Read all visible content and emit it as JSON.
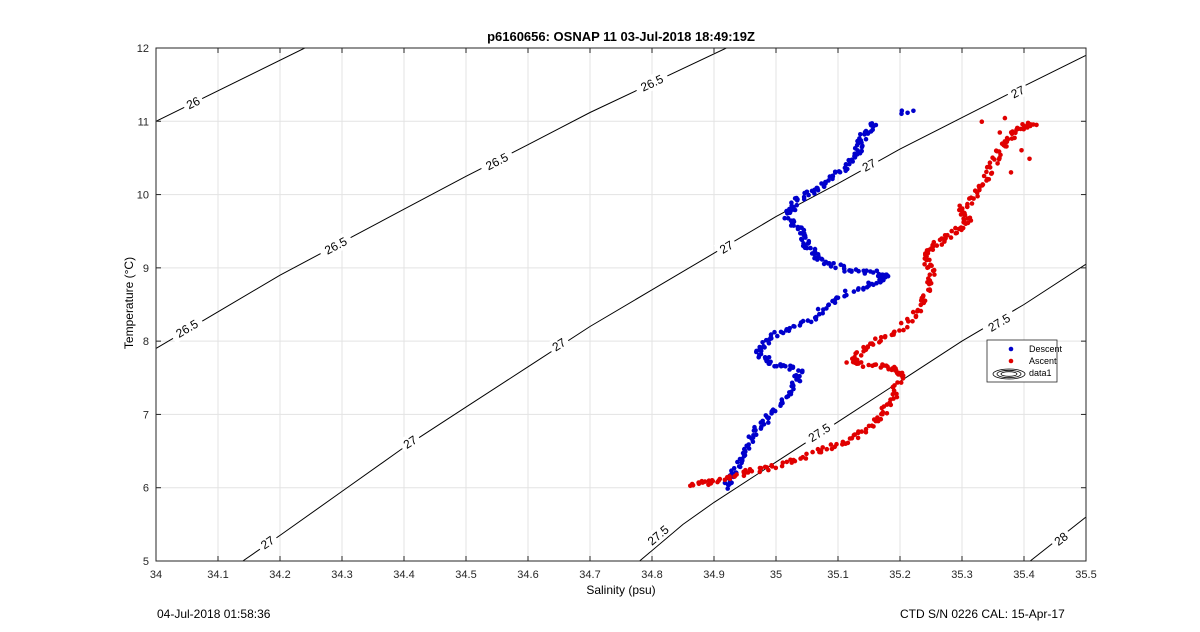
{
  "footer": {
    "left": "04-Jul-2018 01:58:36",
    "right": "CTD S/N 0226  CAL: 15-Apr-17"
  },
  "chart_data": {
    "type": "scatter",
    "title": "p6160656: OSNAP 11 03-Jul-2018 18:49:19Z",
    "xlabel": "Salinity (psu)",
    "ylabel": "Temperature (°C)",
    "xlim": [
      34,
      35.5
    ],
    "ylim": [
      5,
      12
    ],
    "xticks": [
      "34",
      "34.1",
      "34.2",
      "34.3",
      "34.4",
      "34.5",
      "34.6",
      "34.7",
      "34.8",
      "34.9",
      "35",
      "35.1",
      "35.2",
      "35.3",
      "35.4",
      "35.5"
    ],
    "yticks": [
      "5",
      "6",
      "7",
      "8",
      "9",
      "10",
      "11",
      "12"
    ],
    "grid": true,
    "legend": {
      "position": "right",
      "entries": [
        "Descent",
        "Ascent",
        "data1"
      ]
    },
    "colors": {
      "descent": "#0000cc",
      "ascent": "#e00000",
      "contour": "#000000"
    },
    "contours": [
      {
        "level": "26",
        "points": [
          [
            34.0,
            11.0
          ],
          [
            34.24,
            12.0
          ]
        ],
        "label_at": [
          34.06,
          11.25
        ]
      },
      {
        "level": "26.5",
        "points": [
          [
            34.0,
            7.9
          ],
          [
            34.1,
            8.4
          ],
          [
            34.2,
            8.9
          ],
          [
            34.3,
            9.35
          ],
          [
            34.4,
            9.8
          ],
          [
            34.5,
            10.25
          ],
          [
            34.6,
            10.68
          ],
          [
            34.7,
            11.12
          ],
          [
            34.8,
            11.52
          ],
          [
            34.92,
            12.0
          ]
        ],
        "label_at": [
          [
            34.05,
            8.17
          ],
          [
            34.29,
            9.3
          ],
          [
            34.55,
            10.45
          ],
          [
            34.8,
            11.52
          ]
        ]
      },
      {
        "level": "27",
        "points": [
          [
            34.14,
            5.0
          ],
          [
            34.2,
            5.35
          ],
          [
            34.3,
            5.95
          ],
          [
            34.4,
            6.55
          ],
          [
            34.5,
            7.1
          ],
          [
            34.6,
            7.65
          ],
          [
            34.7,
            8.2
          ],
          [
            34.8,
            8.7
          ],
          [
            34.9,
            9.2
          ],
          [
            35.0,
            9.7
          ],
          [
            35.1,
            10.15
          ],
          [
            35.2,
            10.62
          ],
          [
            35.3,
            11.05
          ],
          [
            35.4,
            11.48
          ],
          [
            35.5,
            11.9
          ]
        ],
        "label_at": [
          [
            34.18,
            5.25
          ],
          [
            34.41,
            6.62
          ],
          [
            34.65,
            7.95
          ],
          [
            34.92,
            9.28
          ],
          [
            35.15,
            10.4
          ],
          [
            35.39,
            11.4
          ]
        ]
      },
      {
        "level": "27.5",
        "points": [
          [
            34.78,
            5.0
          ],
          [
            34.85,
            5.5
          ],
          [
            34.9,
            5.8
          ],
          [
            35.0,
            6.35
          ],
          [
            35.1,
            6.9
          ],
          [
            35.2,
            7.45
          ],
          [
            35.3,
            8.0
          ],
          [
            35.4,
            8.5
          ],
          [
            35.5,
            9.05
          ]
        ],
        "label_at": [
          [
            34.81,
            5.35
          ],
          [
            35.07,
            6.75
          ],
          [
            35.36,
            8.25
          ]
        ]
      },
      {
        "level": "28",
        "points": [
          [
            35.41,
            5.0
          ],
          [
            35.5,
            5.6
          ]
        ],
        "label_at": [
          [
            35.46,
            5.3
          ]
        ]
      }
    ],
    "series": [
      {
        "name": "Descent",
        "path": [
          [
            34.92,
            6.0
          ],
          [
            34.93,
            6.2
          ],
          [
            34.95,
            6.5
          ],
          [
            34.97,
            6.8
          ],
          [
            35.0,
            7.05
          ],
          [
            35.03,
            7.4
          ],
          [
            35.04,
            7.6
          ],
          [
            34.99,
            7.7
          ],
          [
            34.97,
            7.85
          ],
          [
            35.0,
            8.1
          ],
          [
            35.06,
            8.3
          ],
          [
            35.1,
            8.6
          ],
          [
            35.16,
            8.8
          ],
          [
            35.18,
            8.92
          ],
          [
            35.12,
            8.97
          ],
          [
            35.07,
            9.1
          ],
          [
            35.05,
            9.3
          ],
          [
            35.04,
            9.5
          ],
          [
            35.02,
            9.7
          ],
          [
            35.03,
            9.9
          ],
          [
            35.07,
            10.1
          ],
          [
            35.1,
            10.3
          ],
          [
            35.13,
            10.55
          ],
          [
            35.14,
            10.8
          ],
          [
            35.16,
            11.0
          ]
        ],
        "extra": [
          [
            35.2,
            11.15
          ],
          [
            35.21,
            11.12
          ],
          [
            35.22,
            11.15
          ],
          [
            35.2,
            11.1
          ]
        ]
      },
      {
        "name": "Ascent",
        "path": [
          [
            34.86,
            6.05
          ],
          [
            34.9,
            6.08
          ],
          [
            34.95,
            6.2
          ],
          [
            35.0,
            6.3
          ],
          [
            35.07,
            6.5
          ],
          [
            35.12,
            6.65
          ],
          [
            35.16,
            6.9
          ],
          [
            35.19,
            7.2
          ],
          [
            35.2,
            7.55
          ],
          [
            35.18,
            7.65
          ],
          [
            35.12,
            7.7
          ],
          [
            35.15,
            7.95
          ],
          [
            35.2,
            8.15
          ],
          [
            35.24,
            8.5
          ],
          [
            35.25,
            8.9
          ],
          [
            35.24,
            9.2
          ],
          [
            35.27,
            9.4
          ],
          [
            35.31,
            9.6
          ],
          [
            35.3,
            9.8
          ],
          [
            35.33,
            10.1
          ],
          [
            35.35,
            10.4
          ],
          [
            35.37,
            10.7
          ],
          [
            35.39,
            10.9
          ],
          [
            35.42,
            10.98
          ]
        ],
        "extra": [
          [
            35.33,
            11.0
          ],
          [
            35.36,
            10.85
          ],
          [
            35.4,
            10.6
          ],
          [
            35.38,
            10.3
          ],
          [
            35.41,
            10.5
          ],
          [
            35.37,
            11.05
          ]
        ]
      }
    ]
  }
}
